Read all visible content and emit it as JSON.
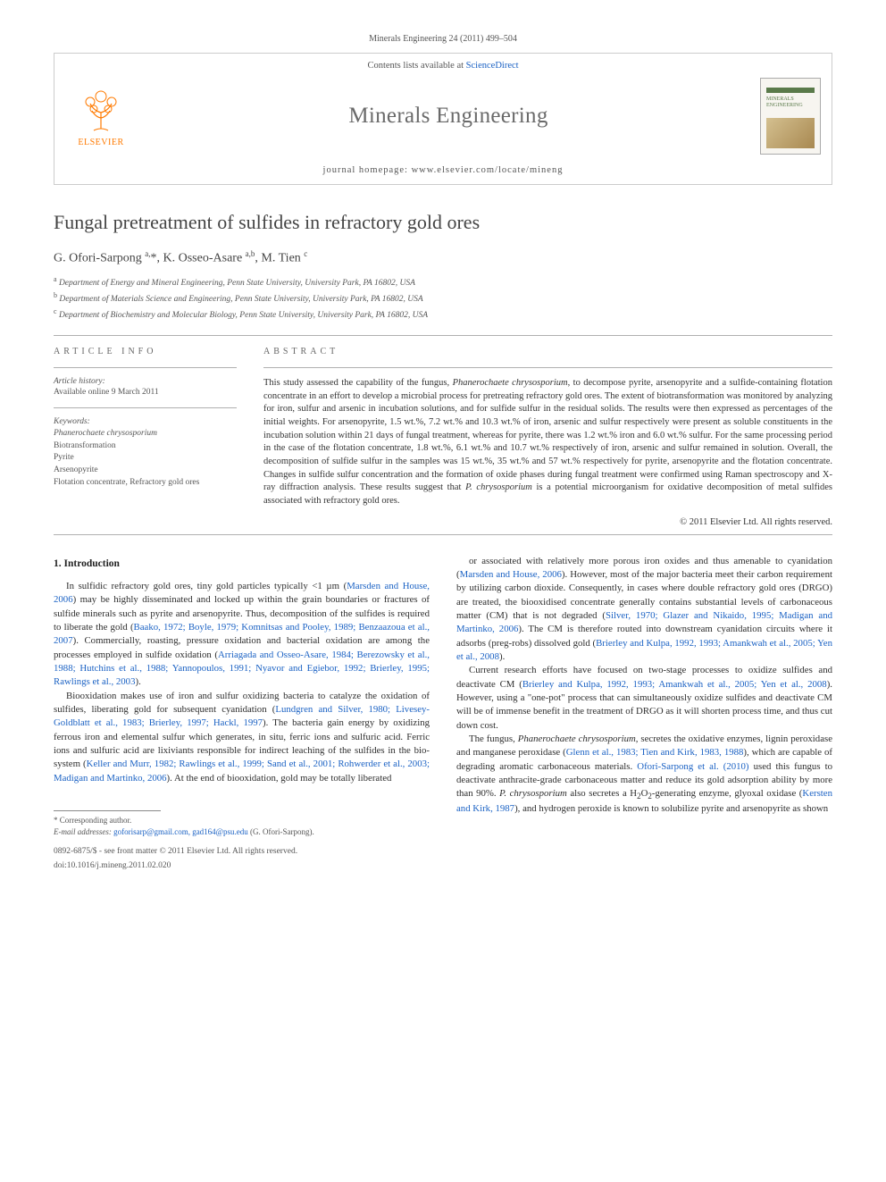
{
  "header": {
    "citation": "Minerals Engineering 24 (2011) 499–504",
    "contents_prefix": "Contents lists available at ",
    "contents_link": "ScienceDirect",
    "journal": "Minerals Engineering",
    "homepage_prefix": "journal homepage: ",
    "homepage_url": "www.elsevier.com/locate/mineng",
    "publisher": "ELSEVIER",
    "cover_label": "MINERALS\nENGINEERING"
  },
  "article": {
    "title": "Fungal pretreatment of sulfides in refractory gold ores",
    "authors_html": "G. Ofori-Sarpong <sup>a,</sup>*, K. Osseo-Asare <sup>a,b</sup>, M. Tien <sup>c</sup>",
    "affiliations": [
      "Department of Energy and Mineral Engineering, Penn State University, University Park, PA 16802, USA",
      "Department of Materials Science and Engineering, Penn State University, University Park, PA 16802, USA",
      "Department of Biochemistry and Molecular Biology, Penn State University, University Park, PA 16802, USA"
    ],
    "aff_markers": [
      "a",
      "b",
      "c"
    ]
  },
  "info": {
    "article_info_label": "ARTICLE INFO",
    "abstract_label": "ABSTRACT",
    "history_head": "Article history:",
    "history_text": "Available online 9 March 2011",
    "keywords_head": "Keywords:",
    "keywords": [
      "Phanerochaete chrysosporium",
      "Biotransformation",
      "Pyrite",
      "Arsenopyrite",
      "Flotation concentrate, Refractory gold ores"
    ]
  },
  "abstract": {
    "text": "This study assessed the capability of the fungus, Phanerochaete chrysosporium, to decompose pyrite, arsenopyrite and a sulfide-containing flotation concentrate in an effort to develop a microbial process for pretreating refractory gold ores. The extent of biotransformation was monitored by analyzing for iron, sulfur and arsenic in incubation solutions, and for sulfide sulfur in the residual solids. The results were then expressed as percentages of the initial weights. For arsenopyrite, 1.5 wt.%, 7.2 wt.% and 10.3 wt.% of iron, arsenic and sulfur respectively were present as soluble constituents in the incubation solution within 21 days of fungal treatment, whereas for pyrite, there was 1.2 wt.% iron and 6.0 wt.% sulfur. For the same processing period in the case of the flotation concentrate, 1.8 wt.%, 6.1 wt.% and 10.7 wt.% respectively of iron, arsenic and sulfur remained in solution. Overall, the decomposition of sulfide sulfur in the samples was 15 wt.%, 35 wt.% and 57 wt.% respectively for pyrite, arsenopyrite and the flotation concentrate. Changes in sulfide sulfur concentration and the formation of oxide phases during fungal treatment were confirmed using Raman spectroscopy and X-ray diffraction analysis. These results suggest that P. chrysosporium is a potential microorganism for oxidative decomposition of metal sulfides associated with refractory gold ores.",
    "copyright": "© 2011 Elsevier Ltd. All rights reserved."
  },
  "body": {
    "section_heading": "1. Introduction",
    "col1": [
      "In sulfidic refractory gold ores, tiny gold particles typically <1 µm (<ref>Marsden and House, 2006</ref>) may be highly disseminated and locked up within the grain boundaries or fractures of sulfide minerals such as pyrite and arsenopyrite. Thus, decomposition of the sulfides is required to liberate the gold (<ref>Baako, 1972; Boyle, 1979; Komnitsas and Pooley, 1989; Benzaazoua et al., 2007</ref>). Commercially, roasting, pressure oxidation and bacterial oxidation are among the processes employed in sulfide oxidation (<ref>Arriagada and Osseo-Asare, 1984; Berezowsky et al., 1988; Hutchins et al., 1988; Yannopoulos, 1991; Nyavor and Egiebor, 1992; Brierley, 1995; Rawlings et al., 2003</ref>).",
      "Biooxidation makes use of iron and sulfur oxidizing bacteria to catalyze the oxidation of sulfides, liberating gold for subsequent cyanidation (<ref>Lundgren and Silver, 1980; Livesey-Goldblatt et al., 1983; Brierley, 1997; Hackl, 1997</ref>). The bacteria gain energy by oxidizing ferrous iron and elemental sulfur which generates, in situ, ferric ions and sulfuric acid. Ferric ions and sulfuric acid are lixiviants responsible for indirect leaching of the sulfides in the bio-system (<ref>Keller and Murr, 1982; Rawlings et al., 1999; Sand et al., 2001; Rohwerder et al., 2003; Madigan and Martinko, 2006</ref>). At the end of biooxidation, gold may be totally liberated"
    ],
    "col2": [
      "or associated with relatively more porous iron oxides and thus amenable to cyanidation (<ref>Marsden and House, 2006</ref>). However, most of the major bacteria meet their carbon requirement by utilizing carbon dioxide. Consequently, in cases where double refractory gold ores (DRGO) are treated, the biooxidised concentrate generally contains substantial levels of carbonaceous matter (CM) that is not degraded (<ref>Silver, 1970; Glazer and Nikaido, 1995; Madigan and Martinko, 2006</ref>). The CM is therefore routed into downstream cyanidation circuits where it adsorbs (preg-robs) dissolved gold (<ref>Brierley and Kulpa, 1992, 1993; Amankwah et al., 2005; Yen et al., 2008</ref>).",
      "Current research efforts have focused on two-stage processes to oxidize sulfides and deactivate CM (<ref>Brierley and Kulpa, 1992, 1993; Amankwah et al., 2005; Yen et al., 2008</ref>). However, using a \"one-pot\" process that can simultaneously oxidize sulfides and deactivate CM will be of immense benefit in the treatment of DRGO as it will shorten process time, and thus cut down cost.",
      "The fungus, <i>Phanerochaete chrysosporium</i>, secretes the oxidative enzymes, lignin peroxidase and manganese peroxidase (<ref>Glenn et al., 1983; Tien and Kirk, 1983, 1988</ref>), which are capable of degrading aromatic carbonaceous materials. <ref>Ofori-Sarpong et al. (2010)</ref> used this fungus to deactivate anthracite-grade carbonaceous matter and reduce its gold adsorption ability by more than 90%. <i>P. chrysosporium</i> also secretes a H<sub>2</sub>O<sub>2</sub>-generating enzyme, glyoxal oxidase (<ref>Kersten and Kirk, 1987</ref>), and hydrogen peroxide is known to solubilize pyrite and arsenopyrite as shown"
    ]
  },
  "footer": {
    "corresponding": "* Corresponding author.",
    "email_label": "E-mail addresses:",
    "emails": "goforisarp@gmail.com, gad164@psu.edu",
    "email_for": "(G. Ofori-Sarpong).",
    "front_matter": "0892-6875/$ - see front matter © 2011 Elsevier Ltd. All rights reserved.",
    "doi": "doi:10.1016/j.mineng.2011.02.020"
  }
}
